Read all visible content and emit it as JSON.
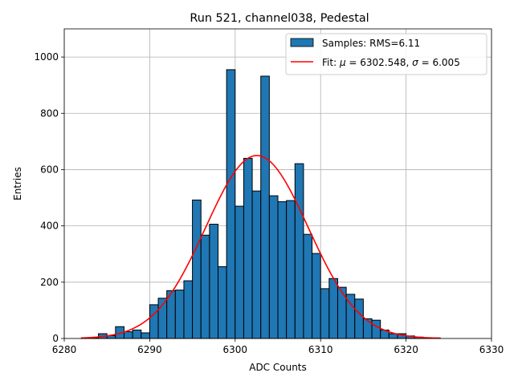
{
  "chart_data": {
    "type": "bar",
    "title": "Run 521, channel038, Pedestal",
    "xlabel": "ADC Counts",
    "ylabel": "Entries",
    "xlim": [
      6280,
      6330
    ],
    "ylim": [
      0,
      1100
    ],
    "xticks": [
      6280,
      6290,
      6300,
      6310,
      6320,
      6330
    ],
    "yticks": [
      0,
      200,
      400,
      600,
      800,
      1000
    ],
    "grid": true,
    "legend_position": "top-right",
    "bar_color": "#1f77b4",
    "fit_color": "#ff0000",
    "histogram": {
      "name": "Samples: RMS=6.11",
      "bin_width": 1,
      "bin_lefts": [
        6282,
        6283,
        6284,
        6285,
        6286,
        6287,
        6288,
        6289,
        6290,
        6291,
        6292,
        6293,
        6294,
        6295,
        6296,
        6297,
        6298,
        6299,
        6300,
        6301,
        6302,
        6303,
        6304,
        6305,
        6306,
        6307,
        6308,
        6309,
        6310,
        6311,
        6312,
        6313,
        6314,
        6315,
        6316,
        6317,
        6318,
        6319,
        6320,
        6321,
        6322,
        6323
      ],
      "counts": [
        2,
        3,
        17,
        10,
        42,
        24,
        30,
        20,
        120,
        143,
        170,
        172,
        205,
        492,
        367,
        406,
        255,
        955,
        470,
        640,
        524,
        932,
        507,
        486,
        490,
        621,
        370,
        302,
        177,
        213,
        182,
        157,
        140,
        70,
        65,
        30,
        17,
        17,
        9,
        5,
        3,
        2
      ]
    },
    "fit": {
      "name_prefix": "Fit: ",
      "mu_label": "μ",
      "mu_value": "6302.548",
      "sigma_label": "σ",
      "sigma_value": "6.005",
      "mu": 6302.548,
      "sigma": 6.005,
      "amplitude": 650,
      "x_range": [
        6282,
        6324
      ]
    }
  }
}
